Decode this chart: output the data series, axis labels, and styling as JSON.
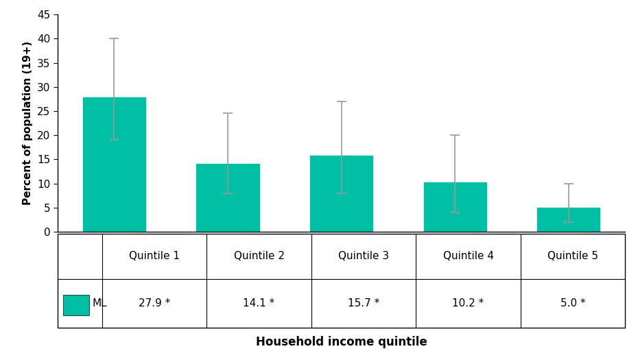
{
  "categories": [
    "Quintile 1",
    "Quintile 2",
    "Quintile 3",
    "Quintile 4",
    "Quintile 5"
  ],
  "values": [
    27.9,
    14.1,
    15.7,
    10.2,
    5.0
  ],
  "error_upper": [
    12.1,
    10.4,
    11.3,
    9.8,
    5.0
  ],
  "error_lower": [
    8.9,
    6.1,
    7.7,
    6.2,
    3.0
  ],
  "bar_color": "#00BFA5",
  "error_color": "#999999",
  "ylabel": "Percent of population (19+)",
  "xlabel": "Household income quintile",
  "ylim": [
    0,
    45
  ],
  "yticks": [
    0,
    5,
    10,
    15,
    20,
    25,
    30,
    35,
    40,
    45
  ],
  "table_values": [
    "27.9 *",
    "14.1 *",
    "15.7 *",
    "10.2 *",
    "5.0 *"
  ],
  "legend_label": "ML",
  "legend_color": "#00BFA5",
  "background_color": "#ffffff",
  "axis_fontsize": 11,
  "tick_fontsize": 11,
  "table_fontsize": 11,
  "xlabel_fontsize": 12
}
